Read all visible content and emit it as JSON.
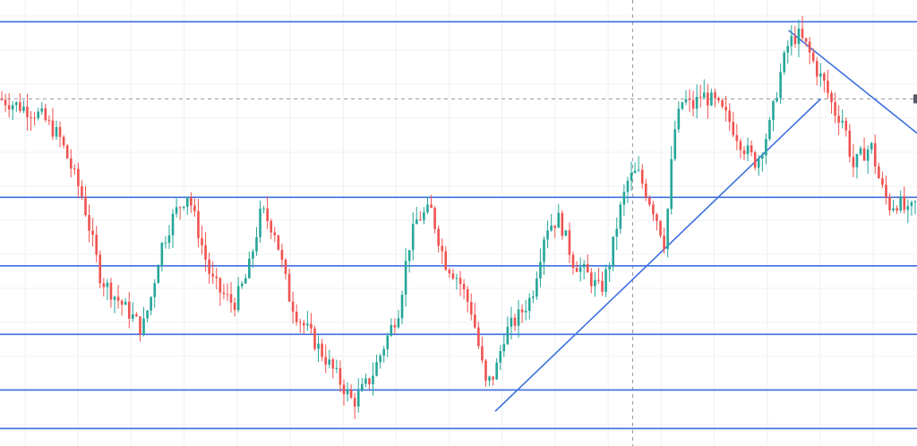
{
  "colors": {
    "background": "#ffffff",
    "grid": "#eef0f3",
    "up_candle": "#26a69a",
    "down_candle": "#ef5350",
    "drawing_line": "#3d6fe0",
    "crosshair": "#9598a1"
  },
  "chart_data": {
    "type": "candlestick",
    "title": "",
    "xlabel": "",
    "ylabel": "",
    "price_axis_visible": false,
    "time_axis_visible": false,
    "grid": true,
    "y_range": [
      0,
      100
    ],
    "x_range": [
      0,
      200
    ],
    "close_path": [
      [
        0,
        79
      ],
      [
        5,
        77
      ],
      [
        9,
        75
      ],
      [
        13,
        70
      ],
      [
        18,
        56
      ],
      [
        22,
        37
      ],
      [
        25,
        33
      ],
      [
        29,
        28
      ],
      [
        31,
        25
      ],
      [
        33,
        33
      ],
      [
        35,
        44
      ],
      [
        38,
        52
      ],
      [
        41,
        57
      ],
      [
        44,
        45
      ],
      [
        46,
        37
      ],
      [
        48,
        34
      ],
      [
        51,
        31
      ],
      [
        54,
        38
      ],
      [
        57,
        53
      ],
      [
        60,
        48
      ],
      [
        63,
        33
      ],
      [
        65,
        28
      ],
      [
        67,
        25
      ],
      [
        70,
        20
      ],
      [
        73,
        15
      ],
      [
        77,
        8
      ],
      [
        81,
        14
      ],
      [
        84,
        22
      ],
      [
        87,
        30
      ],
      [
        89,
        44
      ],
      [
        91,
        51
      ],
      [
        94,
        53
      ],
      [
        97,
        41
      ],
      [
        100,
        37
      ],
      [
        103,
        29
      ],
      [
        106,
        12
      ],
      [
        108,
        15
      ],
      [
        110,
        24
      ],
      [
        113,
        28
      ],
      [
        116,
        33
      ],
      [
        119,
        49
      ],
      [
        122,
        51
      ],
      [
        125,
        41
      ],
      [
        128,
        38
      ],
      [
        131,
        34
      ],
      [
        133,
        41
      ],
      [
        135,
        52
      ],
      [
        137,
        60
      ],
      [
        139,
        62
      ],
      [
        141,
        57
      ],
      [
        143,
        52
      ],
      [
        145,
        45
      ],
      [
        147,
        71
      ],
      [
        149,
        79
      ],
      [
        151,
        77
      ],
      [
        153,
        80
      ],
      [
        156,
        78
      ],
      [
        159,
        74
      ],
      [
        162,
        68
      ],
      [
        165,
        64
      ],
      [
        168,
        73
      ],
      [
        170,
        84
      ],
      [
        172,
        92
      ],
      [
        174,
        94
      ],
      [
        176,
        91
      ],
      [
        178,
        86
      ],
      [
        180,
        82
      ],
      [
        182,
        76
      ],
      [
        184,
        74
      ],
      [
        186,
        63
      ],
      [
        188,
        66
      ],
      [
        190,
        68
      ],
      [
        192,
        59
      ],
      [
        194,
        54
      ],
      [
        196,
        55
      ],
      [
        198,
        52
      ],
      [
        200,
        55
      ]
    ],
    "horizontal_levels": [
      97,
      56,
      40,
      24,
      11,
      2
    ],
    "trendlines": [
      {
        "from": [
          108,
          6
        ],
        "to": [
          179,
          79
        ]
      },
      {
        "from": [
          172,
          95
        ],
        "to": [
          200,
          71
        ]
      }
    ],
    "crosshair": {
      "x": 138,
      "y": 79
    }
  }
}
